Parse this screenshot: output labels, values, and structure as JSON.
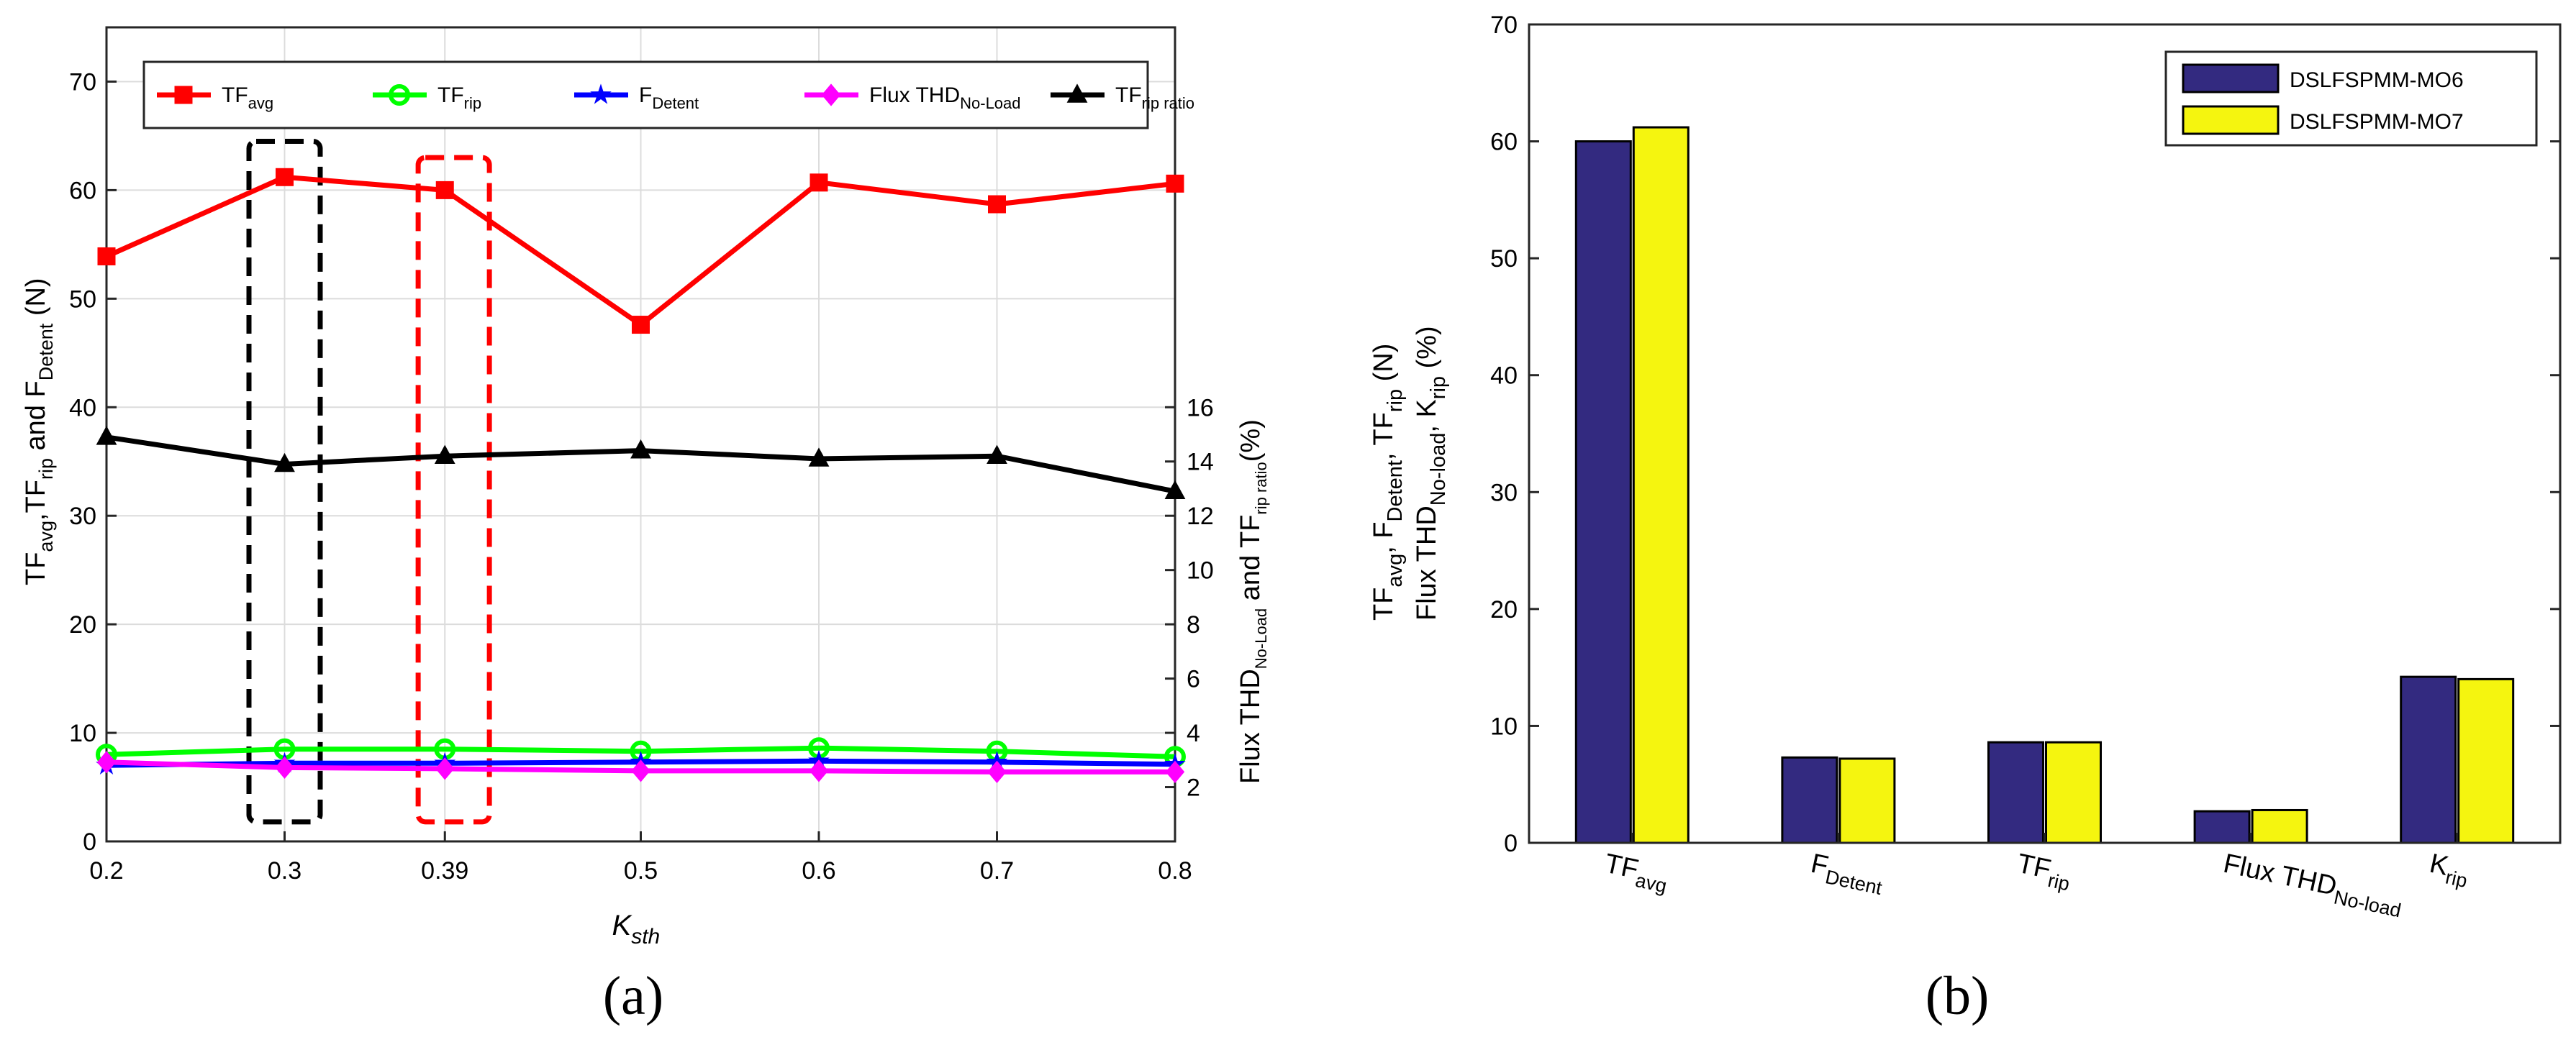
{
  "chart_data": [
    {
      "type": "line",
      "panel_label": "(a)",
      "x": [
        0.2,
        0.3,
        0.39,
        0.5,
        0.6,
        0.7,
        0.8
      ],
      "xticks": [
        "0.2",
        "0.3",
        "0.39",
        "0.5",
        "0.6",
        "0.7",
        "0.8"
      ],
      "xlabel": "K",
      "xlabel_sub": "sth",
      "ylabel_parts": [
        [
          "TF",
          ""
        ],
        [
          "avg",
          "sub"
        ],
        [
          ",TF",
          ""
        ],
        [
          "rip",
          "sub"
        ],
        [
          " and F",
          ""
        ],
        [
          "Detent",
          "sub"
        ],
        [
          " (N)",
          ""
        ]
      ],
      "ylim": [
        0,
        75
      ],
      "yticks": [
        "0",
        "10",
        "20",
        "30",
        "40",
        "50",
        "60",
        "70"
      ],
      "y2label_parts": [
        [
          "Flux THD",
          ""
        ],
        [
          "No-Load",
          "sub"
        ],
        [
          "  and TF",
          ""
        ],
        [
          "rip ratio",
          "sub"
        ],
        [
          "(%)",
          ""
        ]
      ],
      "y2ticks": [
        "2",
        "4",
        "6",
        "8",
        "10",
        "12",
        "14",
        "16"
      ],
      "y2_per_y1": 0.4,
      "grid": true,
      "legend_position": "top",
      "series": [
        {
          "name": "TF",
          "name_sub": "avg",
          "color": "#ff0000",
          "marker": "square",
          "axis": "left",
          "values": [
            53.9,
            61.2,
            60.0,
            47.6,
            60.7,
            58.7,
            60.6
          ]
        },
        {
          "name": "TF",
          "name_sub": "rip",
          "color": "#00ff00",
          "marker": "circle",
          "axis": "left",
          "values": [
            8.0,
            8.5,
            8.5,
            8.3,
            8.6,
            8.3,
            7.8
          ]
        },
        {
          "name": "F",
          "name_sub": "Detent",
          "color": "#0000ff",
          "marker": "star",
          "axis": "left",
          "values": [
            7.0,
            7.2,
            7.2,
            7.3,
            7.4,
            7.3,
            7.1
          ]
        },
        {
          "name": "Flux THD",
          "name_sub": "No-Load",
          "color": "#ff00ff",
          "marker": "diamond",
          "axis": "left",
          "values": [
            7.3,
            6.8,
            6.7,
            6.5,
            6.5,
            6.4,
            6.4
          ]
        },
        {
          "name": "TF",
          "name_sub": "rip ratio",
          "color": "#000000",
          "marker": "triangle",
          "axis": "right",
          "values": [
            14.9,
            13.9,
            14.2,
            14.4,
            14.1,
            14.2,
            12.9
          ]
        }
      ],
      "highlight_boxes": [
        {
          "x": 0.3,
          "x_from": 0.28,
          "x_to": 0.32,
          "y_from": 1.8,
          "y_to": 64.5,
          "color": "#000000"
        },
        {
          "x": 0.39,
          "x_from": 0.375,
          "x_to": 0.415,
          "y_from": 1.8,
          "y_to": 63.0,
          "color": "#ff0000"
        }
      ]
    },
    {
      "type": "bar",
      "panel_label": "(b)",
      "categories": [
        [
          [
            "TF",
            ""
          ],
          [
            "avg",
            "sub"
          ]
        ],
        [
          [
            "F",
            ""
          ],
          [
            "Detent",
            "sub"
          ]
        ],
        [
          [
            "TF",
            ""
          ],
          [
            "rip",
            "sub"
          ]
        ],
        [
          [
            "Flux THD",
            ""
          ],
          [
            "No-load",
            "sub"
          ]
        ],
        [
          [
            "K",
            ""
          ],
          [
            "rip",
            "sub"
          ]
        ]
      ],
      "ylabel_line1": [
        [
          "TF",
          ""
        ],
        [
          "avg",
          "sub"
        ],
        [
          ", F",
          ""
        ],
        [
          "Detent",
          "sub"
        ],
        [
          ", TF",
          ""
        ],
        [
          "rip",
          "sub"
        ],
        [
          " (N)",
          ""
        ]
      ],
      "ylabel_line2": [
        [
          "Flux THD",
          ""
        ],
        [
          "No-load",
          "sub"
        ],
        [
          ", K",
          ""
        ],
        [
          "rip",
          "sub"
        ],
        [
          " (%)",
          ""
        ]
      ],
      "ylim": [
        0,
        70
      ],
      "yticks": [
        "0",
        "10",
        "20",
        "30",
        "40",
        "50",
        "60",
        "70"
      ],
      "grid": false,
      "legend_position": "top-right",
      "series": [
        {
          "name": "DSLFSPMM-MO6",
          "color": "#332a80",
          "values": [
            60.0,
            7.3,
            8.6,
            2.7,
            14.2
          ]
        },
        {
          "name": "DSLFSPMM-MO7",
          "color": "#f5f50f",
          "values": [
            61.2,
            7.2,
            8.6,
            2.8,
            14.0
          ]
        }
      ]
    }
  ]
}
